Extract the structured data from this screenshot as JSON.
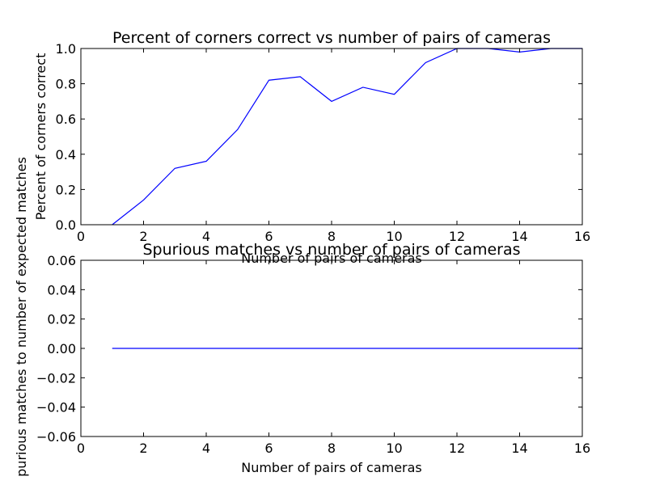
{
  "chart_data": [
    {
      "type": "line",
      "title": "Percent of corners correct vs number of pairs of cameras",
      "xlabel": "Number of pairs of cameras",
      "ylabel": "Percent of corners correct",
      "xlim": [
        0,
        16
      ],
      "ylim": [
        0.0,
        1.0
      ],
      "xticks": [
        0,
        2,
        4,
        6,
        8,
        10,
        12,
        14,
        16
      ],
      "xtick_labels": [
        "0",
        "2",
        "4",
        "6",
        "8",
        "10",
        "12",
        "14",
        "16"
      ],
      "yticks": [
        0.0,
        0.2,
        0.4,
        0.6,
        0.8,
        1.0
      ],
      "ytick_labels": [
        "0.0",
        "0.2",
        "0.4",
        "0.6",
        "0.8",
        "1.0"
      ],
      "grid": false,
      "series": [
        {
          "color": "#0000ff",
          "x": [
            1,
            2,
            3,
            4,
            5,
            6,
            7,
            8,
            9,
            10,
            11,
            12,
            13,
            14,
            15,
            16
          ],
          "y": [
            0.0,
            0.14,
            0.32,
            0.36,
            0.54,
            0.82,
            0.84,
            0.7,
            0.78,
            0.74,
            0.92,
            1.0,
            1.0,
            0.98,
            1.0,
            1.0
          ]
        }
      ]
    },
    {
      "type": "line",
      "title": "Spurious matches vs number of pairs of cameras",
      "xlabel": "Number of pairs of cameras",
      "ylabel": "purious matches to number of expected matches",
      "xlim": [
        0,
        16
      ],
      "ylim": [
        -0.06,
        0.06
      ],
      "xticks": [
        0,
        2,
        4,
        6,
        8,
        10,
        12,
        14,
        16
      ],
      "xtick_labels": [
        "0",
        "2",
        "4",
        "6",
        "8",
        "10",
        "12",
        "14",
        "16"
      ],
      "yticks": [
        -0.06,
        -0.04,
        -0.02,
        0.0,
        0.02,
        0.04,
        0.06
      ],
      "ytick_labels": [
        "−0.06",
        "−0.04",
        "−0.02",
        "0.00",
        "0.02",
        "0.04",
        "0.06"
      ],
      "grid": false,
      "series": [
        {
          "color": "#0000ff",
          "x": [
            1,
            2,
            3,
            4,
            5,
            6,
            7,
            8,
            9,
            10,
            11,
            12,
            13,
            14,
            15,
            16
          ],
          "y": [
            0,
            0,
            0,
            0,
            0,
            0,
            0,
            0,
            0,
            0,
            0,
            0,
            0,
            0,
            0,
            0
          ]
        }
      ]
    }
  ]
}
